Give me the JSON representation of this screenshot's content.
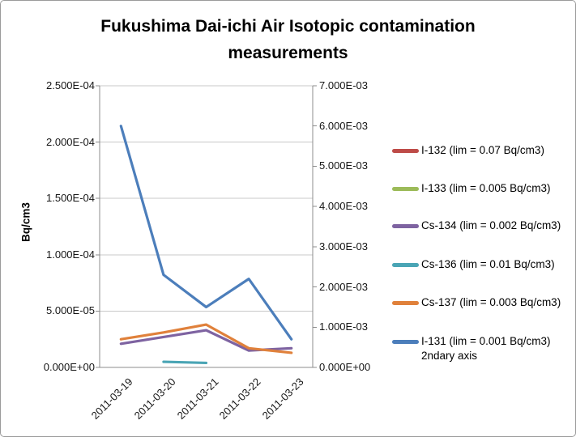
{
  "header": {
    "title_line1": "Fukushima Dai-ichi Air Isotopic contamination",
    "title_line2": "measurements"
  },
  "chart_data": {
    "type": "line",
    "title": "Fukushima Dai-ichi Air Isotopic contamination measurements",
    "categories": [
      "2011-03-19",
      "2011-03-20",
      "2011-03-21",
      "2011-03-22",
      "2011-03-23"
    ],
    "grid": true,
    "legend_position": "right",
    "primary_axis": {
      "title": "Bq/cm3",
      "min": 0,
      "max": 0.00025,
      "ticks_bottom_to_top": [
        "0.000E+00",
        "5.000E-05",
        "1.000E-04",
        "1.500E-04",
        "2.000E-04",
        "2.500E-04"
      ]
    },
    "secondary_axis": {
      "min": 0,
      "max": 0.007,
      "ticks_bottom_to_top": [
        "0.000E+00",
        "1.000E-03",
        "2.000E-03",
        "3.000E-03",
        "4.000E-03",
        "5.000E-03",
        "6.000E-03",
        "7.000E-03"
      ]
    },
    "series": [
      {
        "name": "I-132 (lim = 0.07 Bq/cm3)",
        "color": "#BE4B48",
        "axis": "primary",
        "visible_in_plot": false,
        "values": [
          null,
          null,
          null,
          null,
          null
        ]
      },
      {
        "name": "I-133 (lim = 0.005 Bq/cm3)",
        "color": "#9CBB59",
        "axis": "primary",
        "visible_in_plot": false,
        "values": [
          null,
          null,
          null,
          null,
          null
        ]
      },
      {
        "name": "Cs-134 (lim = 0.002 Bq/cm3)",
        "color": "#7E63A1",
        "axis": "primary",
        "visible_in_plot": true,
        "values": [
          2.1e-05,
          2.7e-05,
          3.3e-05,
          1.5e-05,
          1.7e-05
        ]
      },
      {
        "name": "Cs-136 (lim = 0.01 Bq/cm3)",
        "color": "#4AA5B5",
        "axis": "primary",
        "visible_in_plot": true,
        "values": [
          null,
          5e-06,
          4e-06,
          null,
          null
        ]
      },
      {
        "name": "Cs-137 (lim = 0.003 Bq/cm3)",
        "color": "#E0813B",
        "axis": "primary",
        "visible_in_plot": true,
        "values": [
          2.5e-05,
          3.1e-05,
          3.8e-05,
          1.7e-05,
          1.3e-05
        ]
      },
      {
        "name": "I-131 (lim = 0.001 Bq/cm3)",
        "legend_second_line": "2ndary axis",
        "color": "#4C7EBB",
        "axis": "secondary",
        "visible_in_plot": true,
        "values": [
          0.006,
          0.0023,
          0.0015,
          0.0022,
          0.0007
        ]
      }
    ]
  },
  "style": {
    "gridline_color": "#C8C8C8",
    "axis_color": "#8C8C8C",
    "text_color": "#151515"
  }
}
